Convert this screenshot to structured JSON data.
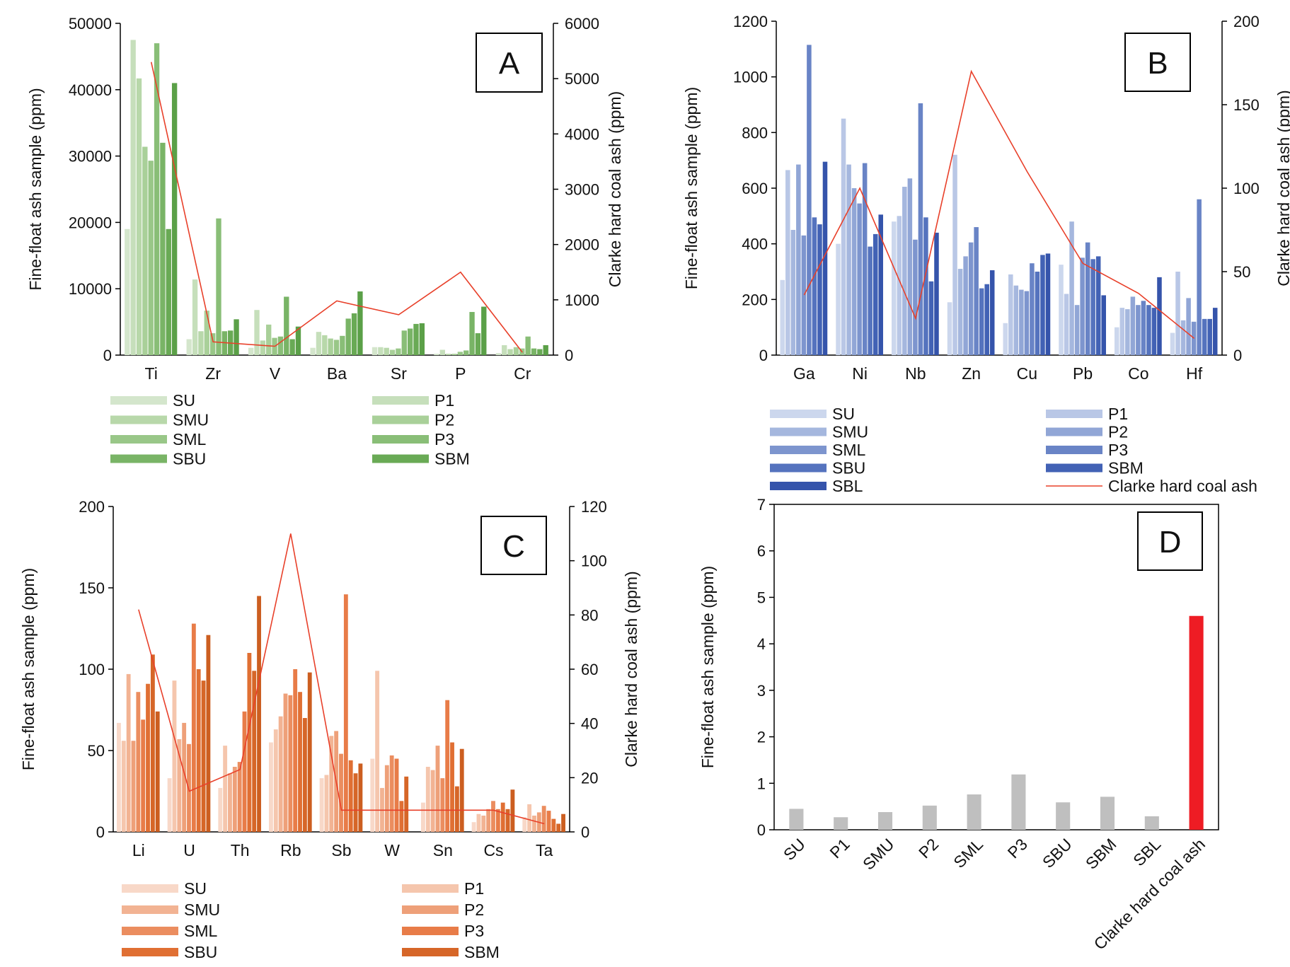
{
  "chart_data": [
    {
      "panel": "A",
      "type": "bar",
      "ylabel": "Fine-float ash sample (ppm)",
      "y2label": "Clarke hard coal ash (ppm)",
      "ylim": [
        0,
        50000
      ],
      "y2lim": [
        0,
        6000
      ],
      "yticks": [
        0,
        10000,
        20000,
        30000,
        40000,
        50000
      ],
      "y2ticks": [
        0,
        1000,
        2000,
        3000,
        4000,
        5000,
        6000
      ],
      "categories": [
        "Ti",
        "Zr",
        "V",
        "Ba",
        "Sr",
        "P",
        "Cr"
      ],
      "series_colors": [
        "#d4e6cc",
        "#c6dfbb",
        "#b8d8aa",
        "#a9d099",
        "#99c788",
        "#89be77",
        "#79b466",
        "#69aa55",
        "#5ba048"
      ],
      "series": [
        {
          "name": "SU",
          "values": [
            19000,
            2400,
            1100,
            1100,
            1200,
            200,
            300
          ]
        },
        {
          "name": "P1",
          "values": [
            47500,
            11400,
            6800,
            3500,
            1200,
            800,
            1500
          ]
        },
        {
          "name": "SMU",
          "values": [
            41700,
            3600,
            2200,
            3000,
            1100,
            200,
            900
          ]
        },
        {
          "name": "P2",
          "values": [
            31400,
            6700,
            4600,
            2500,
            800,
            200,
            1200
          ]
        },
        {
          "name": "SML",
          "values": [
            29300,
            3300,
            2600,
            2300,
            1000,
            500,
            1000
          ]
        },
        {
          "name": "P3",
          "values": [
            47000,
            20600,
            2800,
            2900,
            3700,
            700,
            2800
          ]
        },
        {
          "name": "SBU",
          "values": [
            32000,
            3600,
            8800,
            5500,
            4000,
            6500,
            1000
          ]
        },
        {
          "name": "SBM",
          "values": [
            19000,
            3700,
            2400,
            6300,
            4700,
            3300,
            900
          ]
        },
        {
          "name": "",
          "values": [
            41000,
            5400,
            4300,
            9600,
            4800,
            7300,
            1500
          ]
        }
      ],
      "clarke": [
        5300,
        240,
        160,
        980,
        730,
        1500,
        50
      ],
      "legend": {
        "left": [
          "SU",
          "SMU",
          "SML",
          "SBU"
        ],
        "right": [
          "P1",
          "P2",
          "P3",
          "SBM"
        ]
      },
      "panel_label": "A"
    },
    {
      "panel": "B",
      "type": "bar",
      "ylabel": "Fine-float ash sample (ppm)",
      "y2label": "Clarke hard coal ash (ppm)",
      "ylim": [
        0,
        1200
      ],
      "y2lim": [
        0,
        200
      ],
      "yticks": [
        0,
        200,
        400,
        600,
        800,
        1000,
        1200
      ],
      "y2ticks": [
        0,
        50,
        100,
        150,
        200
      ],
      "categories": [
        "Ga",
        "Ni",
        "Nb",
        "Zn",
        "Cu",
        "Pb",
        "Co",
        "Hf"
      ],
      "series_colors": [
        "#ccd7ed",
        "#b9c7e6",
        "#a5b7de",
        "#91a6d6",
        "#7d95ce",
        "#6984c6",
        "#5573be",
        "#4262b5",
        "#3554ab"
      ],
      "series": [
        {
          "name": "SU",
          "values": [
            270,
            400,
            480,
            190,
            115,
            325,
            100,
            80
          ]
        },
        {
          "name": "P1",
          "values": [
            665,
            850,
            500,
            720,
            290,
            220,
            170,
            300
          ]
        },
        {
          "name": "SMU",
          "values": [
            450,
            685,
            605,
            310,
            250,
            480,
            165,
            125
          ]
        },
        {
          "name": "P2",
          "values": [
            685,
            600,
            635,
            355,
            235,
            180,
            210,
            205
          ]
        },
        {
          "name": "SML",
          "values": [
            430,
            545,
            415,
            405,
            230,
            350,
            180,
            120
          ]
        },
        {
          "name": "P3",
          "values": [
            1115,
            690,
            905,
            460,
            330,
            405,
            195,
            560
          ]
        },
        {
          "name": "SBU",
          "values": [
            495,
            390,
            495,
            240,
            300,
            345,
            180,
            130
          ]
        },
        {
          "name": "SBM",
          "values": [
            470,
            435,
            265,
            255,
            360,
            355,
            170,
            130
          ]
        },
        {
          "name": "SBL",
          "values": [
            695,
            505,
            440,
            305,
            365,
            215,
            280,
            170
          ]
        }
      ],
      "clarke": [
        36,
        100,
        22,
        170,
        110,
        55,
        37,
        10
      ],
      "legend": {
        "left": [
          "SU",
          "SMU",
          "SML",
          "SBU",
          "SBL"
        ],
        "right": [
          "P1",
          "P2",
          "P3",
          "SBM"
        ],
        "line": "Clarke hard coal ash"
      },
      "panel_label": "B"
    },
    {
      "panel": "C",
      "type": "bar",
      "ylabel": "Fine-float ash sample (ppm)",
      "y2label": "Clarke hard coal ash (ppm)",
      "ylim": [
        0,
        200
      ],
      "y2lim": [
        0,
        120
      ],
      "yticks": [
        0,
        50,
        100,
        150,
        200
      ],
      "y2ticks": [
        0,
        20,
        40,
        60,
        80,
        100,
        120
      ],
      "categories": [
        "Li",
        "U",
        "Th",
        "Rb",
        "Sb",
        "W",
        "Sn",
        "Cs",
        "Ta"
      ],
      "series_colors": [
        "#f8d8c8",
        "#f5c6ad",
        "#f2b393",
        "#eea079",
        "#eb8d5f",
        "#e87c48",
        "#e06f33",
        "#d66628",
        "#cc5e20"
      ],
      "series": [
        {
          "name": "SU",
          "values": [
            67,
            33,
            27,
            55,
            33,
            45,
            18,
            6,
            9
          ]
        },
        {
          "name": "P1",
          "values": [
            56,
            93,
            53,
            63,
            35,
            99,
            40,
            11,
            17
          ]
        },
        {
          "name": "SMU",
          "values": [
            97,
            57,
            36,
            71,
            59,
            27,
            38,
            10,
            10
          ]
        },
        {
          "name": "P2",
          "values": [
            56,
            67,
            40,
            85,
            62,
            41,
            53,
            14,
            12
          ]
        },
        {
          "name": "SML",
          "values": [
            86,
            54,
            43,
            84,
            48,
            47,
            33,
            19,
            16
          ]
        },
        {
          "name": "P3",
          "values": [
            69,
            128,
            74,
            100,
            146,
            45,
            81,
            14,
            13
          ]
        },
        {
          "name": "SBU",
          "values": [
            91,
            100,
            110,
            86,
            44,
            19,
            55,
            18,
            8
          ]
        },
        {
          "name": "SBM",
          "values": [
            109,
            93,
            99,
            70,
            36,
            34,
            28,
            14,
            5
          ]
        },
        {
          "name": "",
          "values": [
            74,
            121,
            145,
            98,
            42,
            0,
            51,
            26,
            11
          ]
        }
      ],
      "clarke": [
        82,
        15,
        23,
        110,
        8,
        8,
        8,
        8,
        3
      ],
      "legend": {
        "left": [
          "SU",
          "SMU",
          "SML",
          "SBU"
        ],
        "right": [
          "P1",
          "P2",
          "P3",
          "SBM"
        ]
      },
      "panel_label": "C"
    },
    {
      "panel": "D",
      "type": "bar",
      "ylabel": "Fine-float ash sample (ppm)",
      "ylim": [
        0,
        7
      ],
      "yticks": [
        0,
        1,
        2,
        3,
        4,
        5,
        6,
        7
      ],
      "categories": [
        "SU",
        "P1",
        "SMU",
        "P2",
        "SML",
        "P3",
        "SBU",
        "SBM",
        "SBL",
        "Clarke hard coal ash"
      ],
      "values": [
        0.45,
        0.27,
        0.38,
        0.52,
        0.76,
        1.19,
        0.59,
        0.71,
        0.29,
        4.6
      ],
      "bar_color": "#bfbfbf",
      "highlight_color": "#ee1c24",
      "panel_label": "D"
    }
  ],
  "clarke_line_color": "#e8402a"
}
